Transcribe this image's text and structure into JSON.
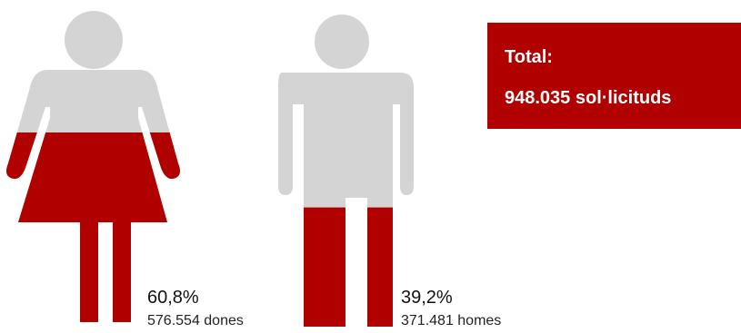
{
  "chart_data": {
    "type": "pictogram",
    "series": [
      {
        "name": "dones",
        "percent_label": "60,8%",
        "count_label": "576.554 dones",
        "value": 576554,
        "fraction": 0.608
      },
      {
        "name": "homes",
        "percent_label": "39,2%",
        "count_label": "371.481 homes",
        "value": 371481,
        "fraction": 0.392
      }
    ],
    "total_label": "Total:",
    "total_value": "948.035 sol·licituds"
  },
  "colors": {
    "fill": "#b00000",
    "empty": "#d4d4d4",
    "outline": "#d9a36a",
    "total_bg": "#b00000"
  },
  "icons": [
    "woman-icon",
    "man-icon"
  ]
}
